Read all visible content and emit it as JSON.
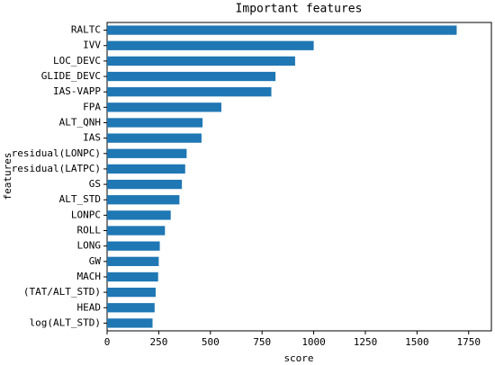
{
  "chart_data": {
    "type": "barh",
    "title": "Important features",
    "xlabel": "score",
    "ylabel": "features",
    "categories": [
      "RALTC",
      "IVV",
      "LOC_DEVC",
      "GLIDE_DEVC",
      "IAS-VAPP",
      "FPA",
      "ALT_QNH",
      "IAS",
      "residual(LONPC)",
      "residual(LATPC)",
      "GS",
      "ALT_STD",
      "LONPC",
      "ROLL",
      "LONG",
      "GW",
      "MACH",
      "(TAT/ALT_STD)",
      "HEAD",
      "log(ALT_STD)"
    ],
    "values": [
      1692,
      1000,
      910,
      815,
      795,
      553,
      462,
      457,
      385,
      378,
      362,
      350,
      308,
      280,
      255,
      250,
      247,
      235,
      230,
      220
    ],
    "color": "#1f77b4",
    "xlim": [
      0,
      1860
    ],
    "xticks": [
      0,
      250,
      500,
      750,
      1000,
      1250,
      1500,
      1750
    ]
  }
}
